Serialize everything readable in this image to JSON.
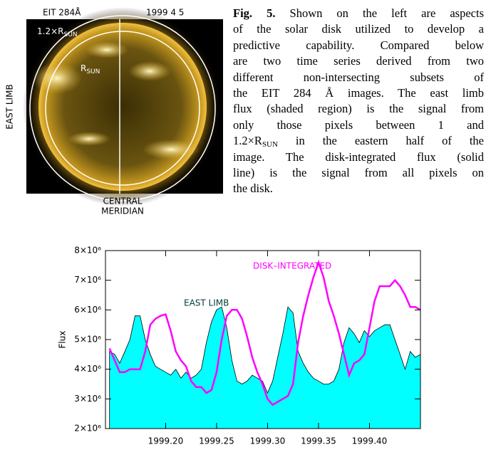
{
  "image": {
    "title": "EIT 284Å",
    "date": "1999 4 5",
    "outer_label": {
      "text": "1.2×R",
      "sub": "SUN"
    },
    "inner_label": {
      "text": "R",
      "sub": "SUN"
    },
    "left_label": "EAST LIMB",
    "bottom_label": [
      "CENTRAL",
      "MERIDIAN"
    ]
  },
  "caption": {
    "label": "Fig. 5.",
    "lines": [
      "Shown on the left are aspects",
      "of the solar disk utilized to develop a",
      "predictive capability. Compared below",
      "are two time series derived from two",
      "different non-intersecting subsets of",
      "the EIT 284 Å images. The east limb",
      "flux (shaded region) is the signal from",
      "only those pixels between 1 and",
      {
        "text": "1.2×R",
        "sub": "SUN",
        "rest": "in the eastern half of the"
      },
      "image. The disk-integrated flux (solid",
      "line) is the signal from all pixels on",
      "the disk."
    ]
  },
  "chart_data": {
    "type": "line",
    "ylabel": "Flux",
    "x": [
      1999.145,
      1999.15,
      1999.155,
      1999.16,
      1999.165,
      1999.17,
      1999.175,
      1999.18,
      1999.185,
      1999.19,
      1999.195,
      1999.2,
      1999.205,
      1999.21,
      1999.215,
      1999.22,
      1999.225,
      1999.23,
      1999.235,
      1999.24,
      1999.245,
      1999.25,
      1999.255,
      1999.26,
      1999.265,
      1999.27,
      1999.275,
      1999.28,
      1999.285,
      1999.29,
      1999.295,
      1999.3,
      1999.305,
      1999.31,
      1999.315,
      1999.32,
      1999.325,
      1999.33,
      1999.335,
      1999.34,
      1999.345,
      1999.35,
      1999.355,
      1999.36,
      1999.365,
      1999.37,
      1999.375,
      1999.38,
      1999.385,
      1999.39,
      1999.395,
      1999.4,
      1999.405,
      1999.41,
      1999.415,
      1999.42,
      1999.425,
      1999.43,
      1999.435,
      1999.44,
      1999.445,
      1999.45
    ],
    "series": [
      {
        "name": "EAST LIMB",
        "style": "area",
        "color": "#00ffff",
        "label_color": "#003c3c",
        "values": [
          4600000,
          4500000,
          4200000,
          4600000,
          5000000,
          5800000,
          5800000,
          5000000,
          4500000,
          4100000,
          4000000,
          3900000,
          3800000,
          4000000,
          3700000,
          3900000,
          3700000,
          3800000,
          4000000,
          4900000,
          5600000,
          6000000,
          6100000,
          5400000,
          4300000,
          3600000,
          3500000,
          3600000,
          3800000,
          3700000,
          3600000,
          3200000,
          3600000,
          4400000,
          5200000,
          6100000,
          5900000,
          4600000,
          4200000,
          3900000,
          3700000,
          3600000,
          3500000,
          3500000,
          3600000,
          4000000,
          4900000,
          5400000,
          5200000,
          4900000,
          5300000,
          5100000,
          5300000,
          5400000,
          5500000,
          5500000,
          5000000,
          4500000,
          4000000,
          4600000,
          4400000,
          4500000
        ]
      },
      {
        "name": "DISK–INTEGRATED",
        "style": "line",
        "color": "#ff00ff",
        "label_color": "#ff00ff",
        "values": [
          4700000,
          4300000,
          3900000,
          3900000,
          4000000,
          4000000,
          4000000,
          4600000,
          5500000,
          5700000,
          5800000,
          5850000,
          5300000,
          4600000,
          4300000,
          4100000,
          3600000,
          3400000,
          3400000,
          3200000,
          3300000,
          3900000,
          5000000,
          5800000,
          6000000,
          6000000,
          5700000,
          5100000,
          4400000,
          3900000,
          3500000,
          3000000,
          2800000,
          2900000,
          3000000,
          3100000,
          3500000,
          4900000,
          5800000,
          6500000,
          7100000,
          7600000,
          7100000,
          6300000,
          5800000,
          5200000,
          4500000,
          3800000,
          4200000,
          4300000,
          4500000,
          5400000,
          6300000,
          6800000,
          6800000,
          6800000,
          7000000,
          6800000,
          6500000,
          6100000,
          6100000,
          6000000
        ]
      }
    ],
    "xlim": [
      1999.141,
      1999.45
    ],
    "xticks": [
      {
        "value": 1999.2,
        "label": "1999.20"
      },
      {
        "value": 1999.25,
        "label": "1999.25"
      },
      {
        "value": 1999.3,
        "label": "1999.30"
      },
      {
        "value": 1999.35,
        "label": "1999.35"
      },
      {
        "value": 1999.4,
        "label": "1999.40"
      }
    ],
    "ylim": [
      2000000,
      8000000
    ],
    "yticks": [
      {
        "value": 2000000,
        "label": "2×10⁶"
      },
      {
        "value": 3000000,
        "label": "3×10⁶"
      },
      {
        "value": 4000000,
        "label": "4×10⁶"
      },
      {
        "value": 5000000,
        "label": "5×10⁶"
      },
      {
        "value": 6000000,
        "label": "6×10⁶"
      },
      {
        "value": 7000000,
        "label": "7×10⁶"
      },
      {
        "value": 8000000,
        "label": "8×10⁶"
      }
    ]
  }
}
